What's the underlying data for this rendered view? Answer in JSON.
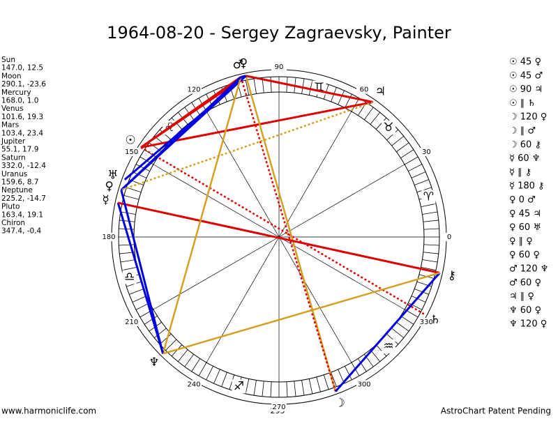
{
  "title": "1964-08-20 - Sergey Zagraevsky, Painter",
  "planets": [
    {
      "name": "Sun",
      "coords": "147.0, 12.5",
      "glyph": "☉"
    },
    {
      "name": "Moon",
      "coords": "290.1, -23.6",
      "glyph": "☽"
    },
    {
      "name": "Mercury",
      "coords": "168.0, 1.0",
      "glyph": "☿"
    },
    {
      "name": "Venus",
      "coords": "101.6, 19.3",
      "glyph": "♀"
    },
    {
      "name": "Mars",
      "coords": "103.4, 23.4",
      "glyph": "♂"
    },
    {
      "name": "Jupiter",
      "coords": "55.1, 17.9",
      "glyph": "♃"
    },
    {
      "name": "Saturn",
      "coords": "332.0, -12.4",
      "glyph": "♄"
    },
    {
      "name": "Uranus",
      "coords": "159.6, 8.7",
      "glyph": "♅"
    },
    {
      "name": "Neptune",
      "coords": "225.2, -14.7",
      "glyph": "♆"
    },
    {
      "name": "Pluto",
      "coords": "163.4, 19.1",
      "glyph": "♀"
    },
    {
      "name": "Chiron",
      "coords": "347.4, -0.4",
      "glyph": "⚷"
    }
  ],
  "aspects": [
    "☉ 45 ♀",
    "☉ 45 ♂",
    "☉ 90 ♃",
    "☉ ∥ ♄",
    "☽ 120 ♀",
    "☽ ∥ ♂",
    "☽ 60 ⚷",
    "☿ 60 ♆",
    "☿ ∥ ⚷",
    "☿ 180 ⚷",
    "♀ 0 ♂",
    "♀ 45 ♃",
    "♀ 60 ♅",
    "♀ ∥ ♀",
    "♀ 60 ♀",
    "♂ 120 ♆",
    "♂ 60 ♀",
    "♃ ∥ ♀",
    "♆ 60 ♀",
    "♆ 120 ♀"
  ],
  "degree_labels": [
    "0",
    "30",
    "60",
    "90",
    "120",
    "150",
    "180",
    "210",
    "240",
    "270",
    "300",
    "330"
  ],
  "zodiac": [
    "♈",
    "♉",
    "♊",
    null,
    "♌",
    null,
    "♎",
    null,
    "♐",
    null,
    "♒",
    null
  ],
  "bottom_label": "295",
  "footer_left": "www.harmoniclife.com",
  "footer_right": "AstroChart Patent Pending"
}
